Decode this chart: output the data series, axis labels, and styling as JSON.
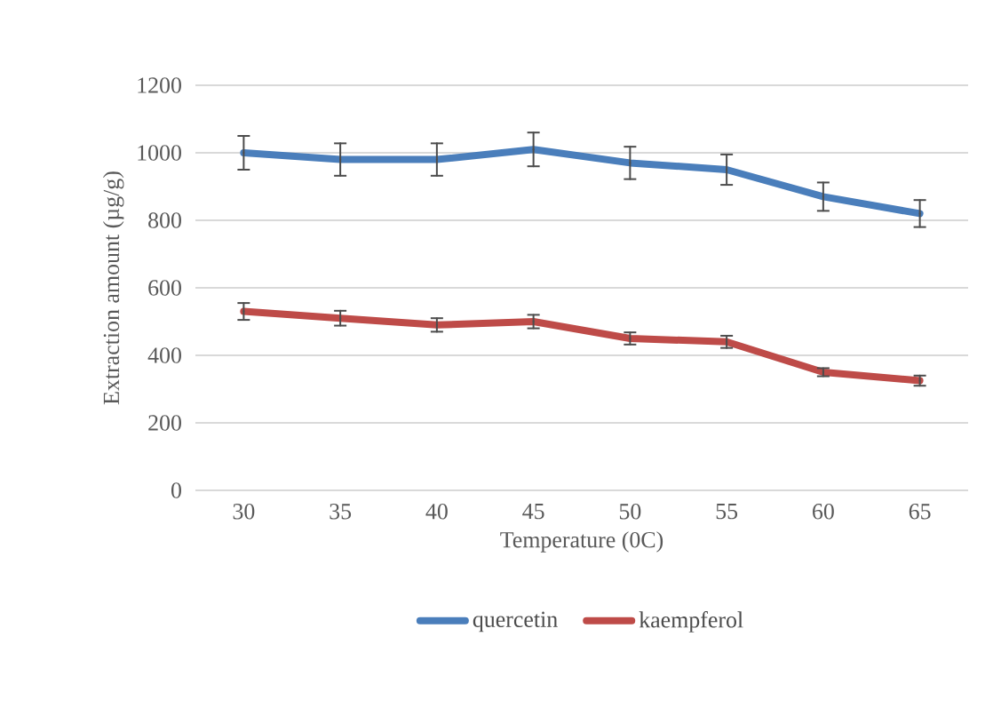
{
  "chart_data": {
    "type": "line",
    "xlabel": "Temperature (0C)",
    "ylabel": "Extraction amount (µg/g)",
    "categories": [
      "30",
      "35",
      "40",
      "45",
      "50",
      "55",
      "60",
      "65"
    ],
    "series": [
      {
        "name": "quercetin",
        "color": "#4a7ebb",
        "values": [
          1000,
          980,
          980,
          1010,
          970,
          950,
          870,
          820
        ],
        "errors": [
          50,
          48,
          48,
          50,
          48,
          45,
          42,
          40
        ]
      },
      {
        "name": "kaempferol",
        "color": "#be4b48",
        "values": [
          530,
          510,
          490,
          500,
          450,
          440,
          350,
          325
        ],
        "errors": [
          25,
          22,
          20,
          20,
          18,
          18,
          12,
          15
        ]
      }
    ],
    "ylim": [
      0,
      1200
    ],
    "yticks": [
      0,
      200,
      400,
      600,
      800,
      1000,
      1200
    ],
    "grid": "y",
    "legend": "bottom",
    "marker": "none",
    "line_style": "solid"
  }
}
